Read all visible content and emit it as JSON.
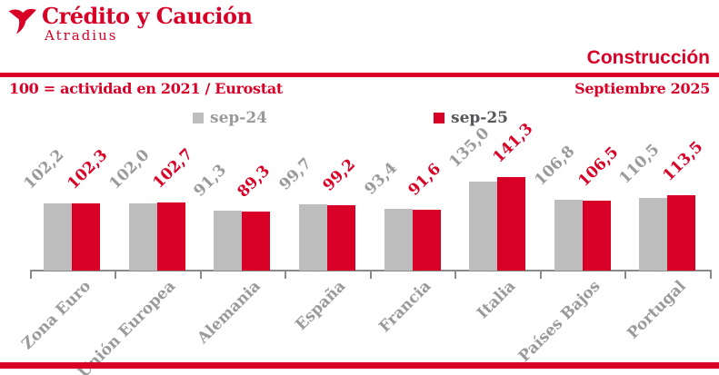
{
  "colors": {
    "brand_red": "#d80027",
    "bar_gray": "#bdbdbd",
    "text_gray": "#9a9a9a",
    "text_dark": "#55565a",
    "axis_gray": "#8a8a8a"
  },
  "logo": {
    "title": "Crédito y Caución",
    "subtitle": "Atradius"
  },
  "header": {
    "section": "Construcción",
    "note": "100 = actividad en 2021 / Eurostat",
    "date": "Septiembre 2025"
  },
  "chart_data": {
    "type": "bar",
    "title": "Construcción",
    "subtitle": "Septiembre 2025",
    "note": "100 = actividad en 2021 / Eurostat",
    "categories": [
      "Zona Euro",
      "Unión Europea",
      "Alemania",
      "España",
      "Francia",
      "Italia",
      "Países Bajos",
      "Portugal"
    ],
    "series": [
      {
        "name": "sep-24",
        "color": "#bdbdbd",
        "values": [
          102.2,
          102.0,
          91.3,
          99.7,
          93.4,
          135.0,
          106.8,
          110.5
        ],
        "labels": [
          "102,2",
          "102,0",
          "91,3",
          "99,7",
          "93,4",
          "135,0",
          "106,8",
          "110,5"
        ]
      },
      {
        "name": "sep-25",
        "color": "#d80027",
        "values": [
          102.3,
          102.7,
          89.3,
          99.2,
          91.6,
          141.3,
          106.5,
          113.5
        ],
        "labels": [
          "102,3",
          "102,7",
          "89,3",
          "99,2",
          "91,6",
          "141,3",
          "106,5",
          "113,5"
        ]
      }
    ],
    "baseline_value": 0,
    "ylim": [
      0,
      145
    ],
    "grid": false,
    "legend_position": "top",
    "value_label_rotation": -45,
    "category_label_rotation": -45
  }
}
